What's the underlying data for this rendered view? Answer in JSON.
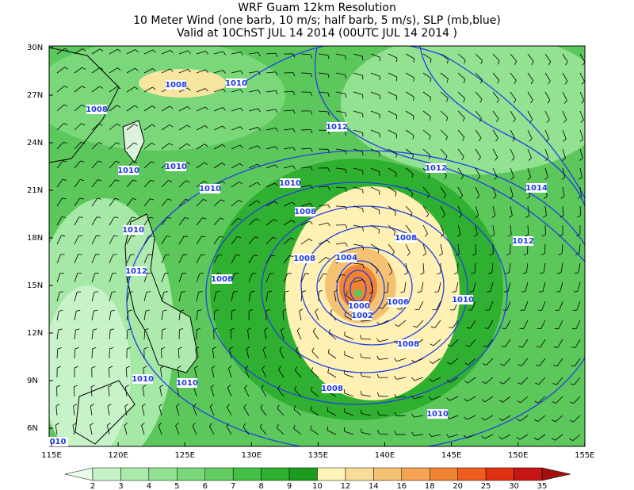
{
  "title": [
    "WRF Guam 12km Resolution",
    "10 Meter Wind (one barb, 10 m/s; half barb, 5 m/s), SLP (mb,blue)",
    "Valid at 10ChST JUL 14 2014 (00UTC JUL 14 2014 )"
  ],
  "lat_ticks": [
    "30N",
    "27N",
    "24N",
    "21N",
    "18N",
    "15N",
    "12N",
    "9N",
    "6N"
  ],
  "lon_ticks": [
    "115E",
    "120E",
    "125E",
    "130E",
    "135E",
    "140E",
    "145E",
    "150E",
    "155E"
  ],
  "contour_labels": [
    "1008",
    "1010",
    "1008",
    "1012",
    "1010",
    "1010",
    "1010",
    "1010",
    "1012",
    "1014",
    "1008",
    "1008",
    "1012",
    "1010",
    "1012",
    "1008",
    "1004",
    "1008",
    "1000",
    "1002",
    "1006",
    "1010",
    "1008",
    "1010",
    "1010",
    "1008",
    "1010",
    "010"
  ],
  "colorbar": {
    "labels": [
      "2",
      "3",
      "4",
      "5",
      "6",
      "7",
      "8",
      "9",
      "10",
      "12",
      "14",
      "16",
      "18",
      "20",
      "25",
      "30",
      "35"
    ],
    "colors": [
      "#eafcea",
      "#c6f2c6",
      "#aaeaaa",
      "#92e292",
      "#7ad87a",
      "#62ce62",
      "#44c044",
      "#30b030",
      "#1c9c1c",
      "#fff4b8",
      "#f8dc98",
      "#f5c274",
      "#f4a452",
      "#f08432",
      "#ee5c1e",
      "#e03210",
      "#c81616",
      "#a00e0e"
    ]
  }
}
